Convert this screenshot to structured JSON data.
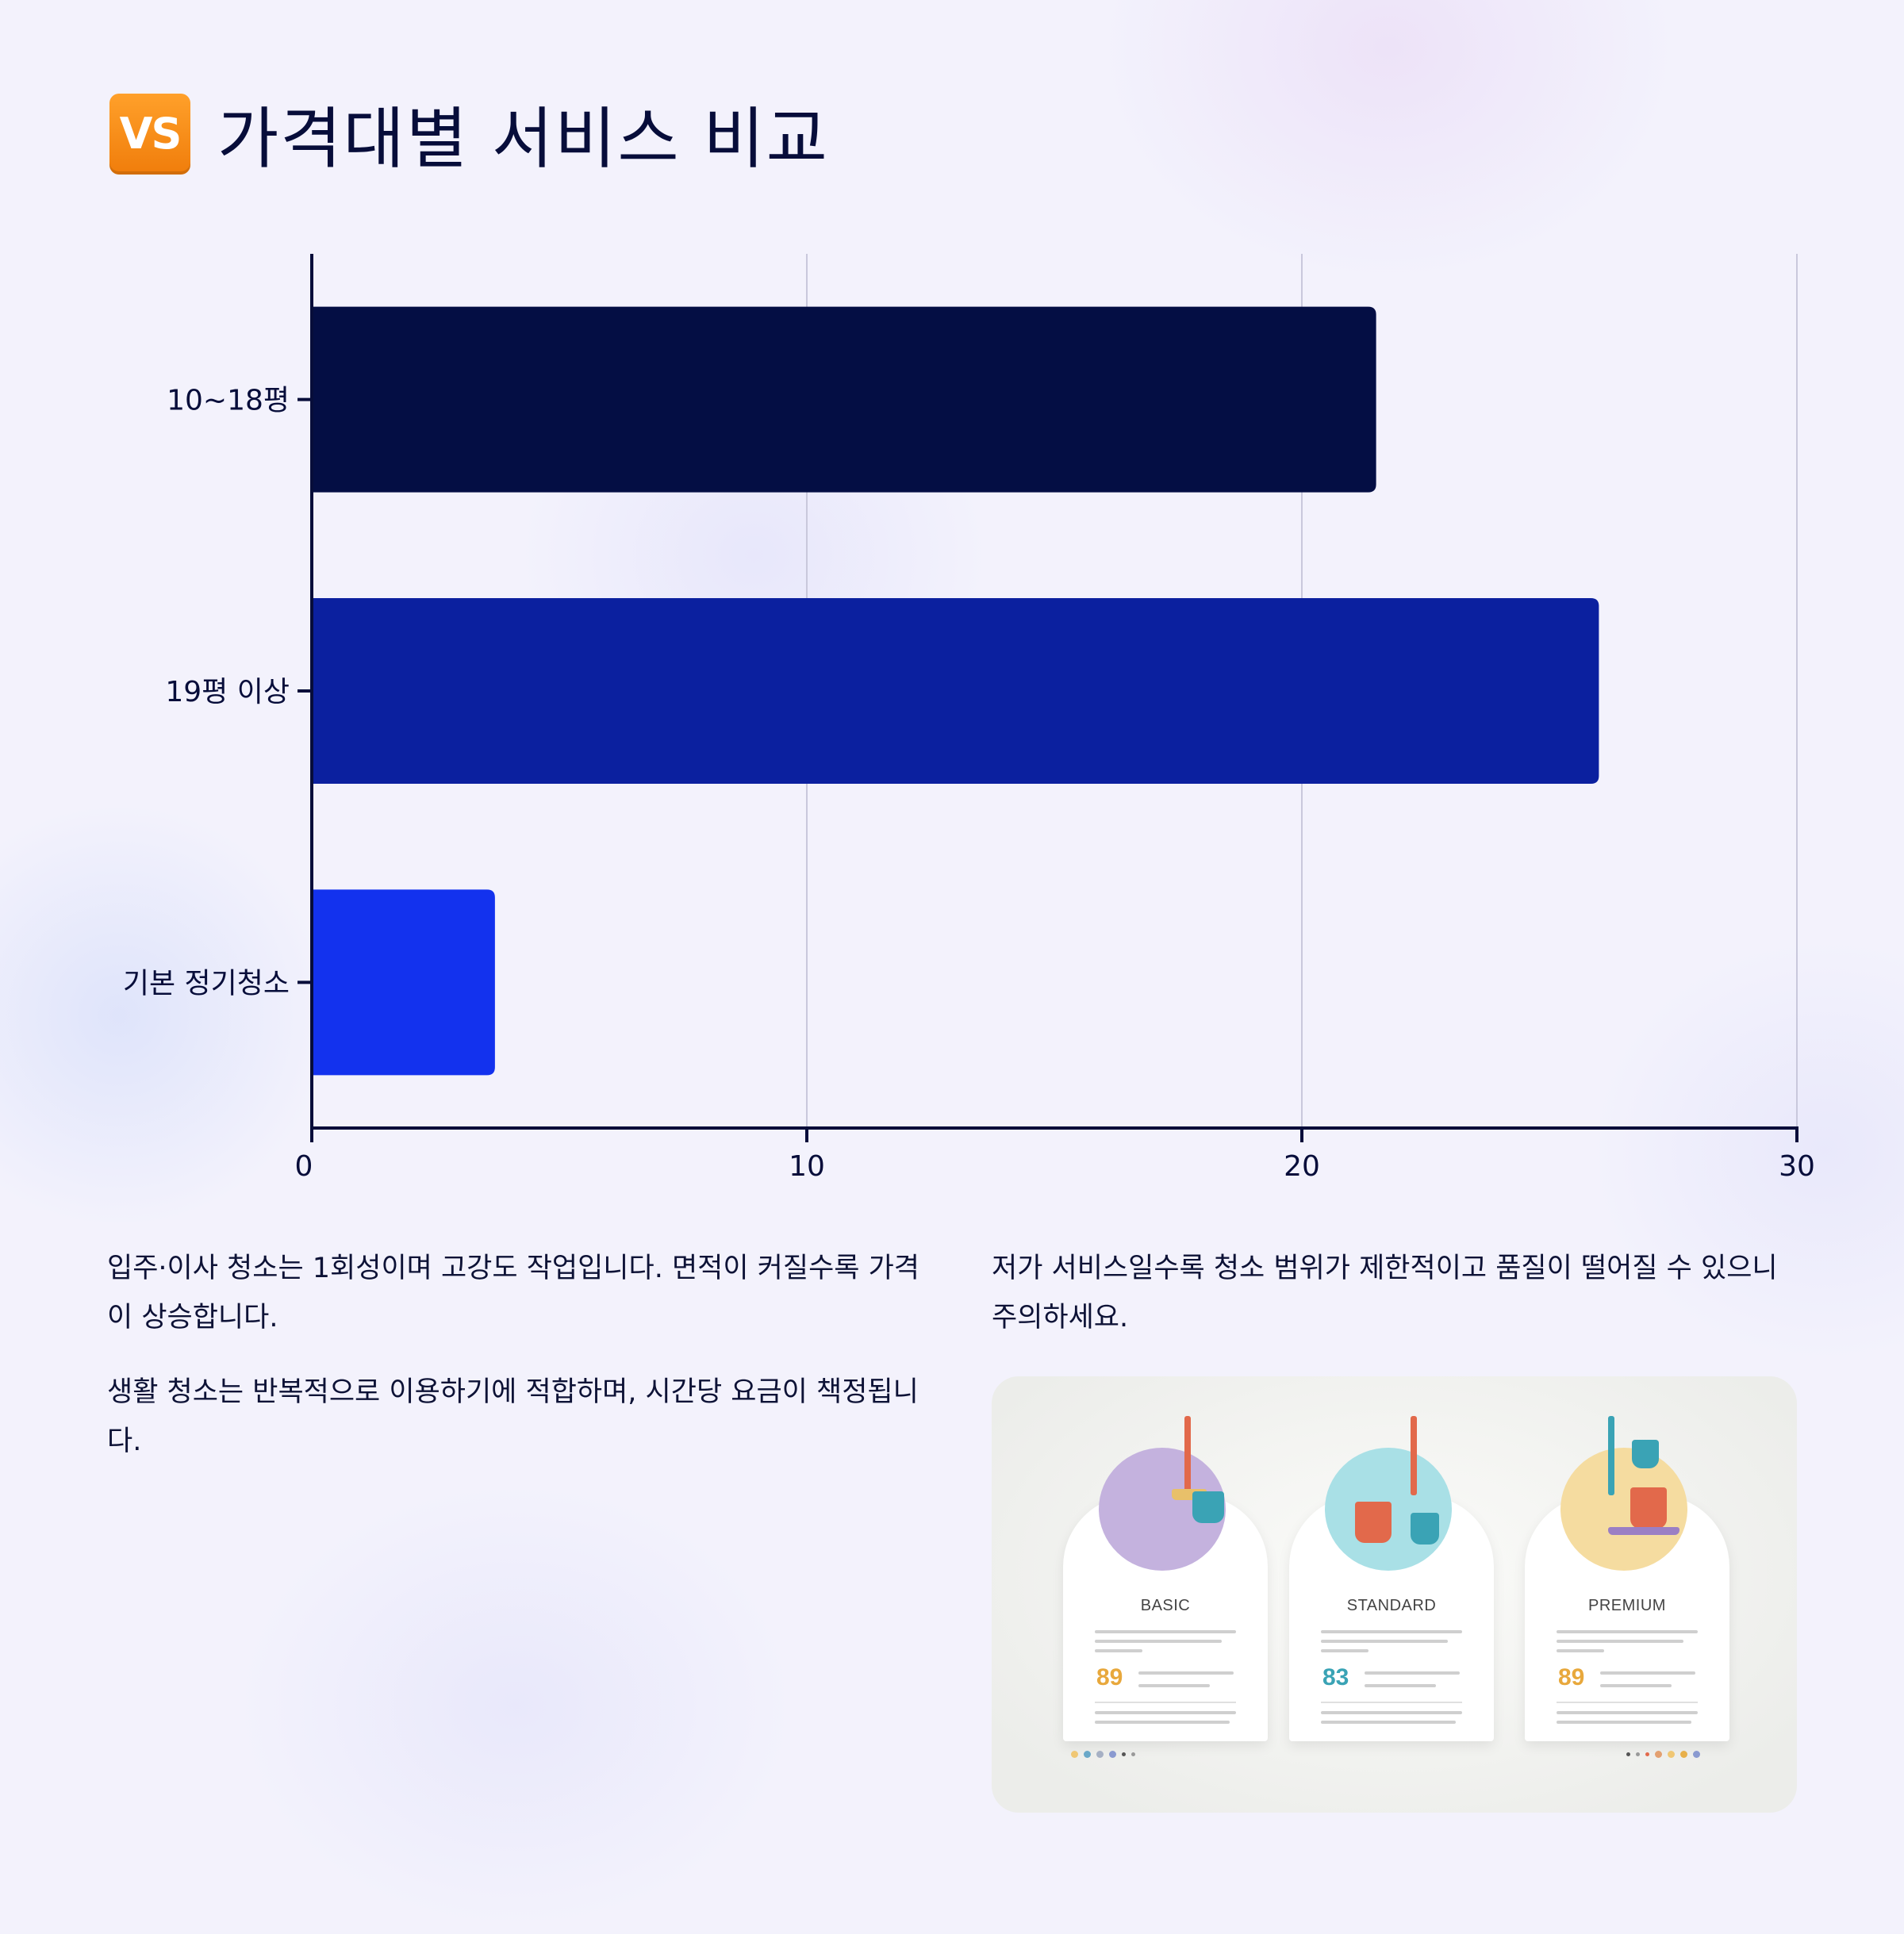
{
  "header": {
    "icon": "vs-button-icon",
    "badge_text": "VS",
    "title": "가격대별 서비스 비교"
  },
  "chart_data": {
    "type": "bar",
    "orientation": "horizontal",
    "categories": [
      "10~18평",
      "19평 이상",
      "기본 정기청소"
    ],
    "values": [
      21.5,
      26,
      3.7
    ],
    "colors": [
      "#040e44",
      "#0b209f",
      "#1332ee"
    ],
    "xlim": [
      0,
      30
    ],
    "xticks": [
      "0",
      "10",
      "20",
      "30"
    ],
    "grid": "vertical",
    "title": "",
    "xlabel": "",
    "ylabel": ""
  },
  "notes": {
    "left_1": "입주·이사 청소는 1회성이며 고강도 작업입니다. 면적이 커질수록 가격이 상승합니다.",
    "left_2": "생활 청소는 반복적으로 이용하기에 적합하며, 시간당 요금이 책정됩니다.",
    "right_1": "저가 서비스일수록 청소 범위가 제한적이고 품질이 떨어질 수 있으니 주의하세요."
  },
  "illustration": {
    "cards": [
      {
        "tier": "BASIC",
        "price": "89",
        "bubble_color": "#c4b2de",
        "accent": "#e8a83c",
        "icon": "broom-dustpan-icon"
      },
      {
        "tier": "STANDARD",
        "price": "83",
        "bubble_color": "#a9e0e6",
        "accent": "#3aa3b5",
        "icon": "mop-bucket-icon"
      },
      {
        "tier": "PREMIUM",
        "price": "89",
        "bubble_color": "#f5dca0",
        "accent": "#e8a83c",
        "icon": "cleaning-cart-icon"
      }
    ]
  }
}
